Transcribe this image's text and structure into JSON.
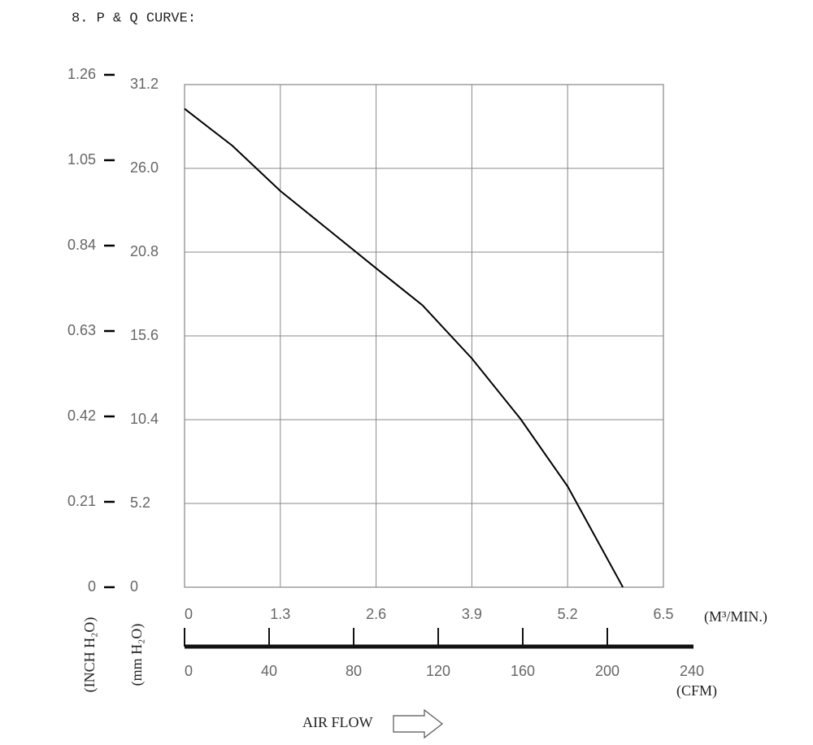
{
  "chart_data": {
    "type": "line",
    "title": "8. P & Q CURVE:",
    "x": [
      0,
      0.65,
      1.3,
      1.95,
      2.6,
      3.23,
      3.9,
      4.56,
      5.2,
      5.95
    ],
    "values": [
      29.7,
      27.4,
      24.6,
      22.2,
      19.8,
      17.5,
      14.2,
      10.45,
      6.26,
      0
    ],
    "color": "#000000",
    "xlim": [
      0,
      6.5
    ],
    "xticks": [
      0,
      1.3,
      2.6,
      3.9,
      5.2,
      6.5
    ],
    "xlabel": "(M³/MIN.)",
    "ylim": [
      0,
      31.2
    ],
    "yticks": [
      0,
      5.2,
      10.4,
      15.6,
      20.8,
      {
        "value": 26,
        "label": "26.0"
      },
      31.2
    ],
    "ylabel": "(mm H₂O)",
    "y2lim": [
      0,
      1.26
    ],
    "y2ticks": [
      0,
      0.21,
      0.42,
      0.63,
      0.84,
      1.05,
      1.26
    ],
    "y2label": "(INCH H₂O)",
    "x2lim": [
      0,
      240
    ],
    "x2ticks": [
      0,
      40,
      80,
      120,
      160,
      200,
      240
    ],
    "x2label": "(CFM)",
    "annotation": "AIR FLOW",
    "grid": true
  }
}
